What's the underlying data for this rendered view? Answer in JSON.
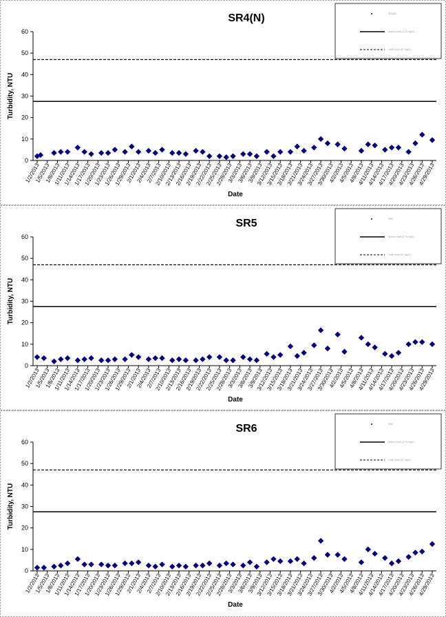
{
  "chart_data": [
    {
      "type": "scatter",
      "title": "SR4(N)",
      "xlabel": "Date",
      "ylabel": "Turbidity, NTU",
      "ylim": [
        0,
        60
      ],
      "yticks": [
        0,
        10,
        20,
        30,
        40,
        50,
        60
      ],
      "xticks": [
        "1/2/2013",
        "1/5/2013",
        "1/8/2013",
        "1/11/2013",
        "1/14/2013",
        "1/17/2013",
        "1/20/2013",
        "1/23/2013",
        "1/26/2013",
        "1/29/2013",
        "2/1/2013",
        "2/4/2013",
        "2/7/2013",
        "2/10/2013",
        "2/13/2013",
        "2/16/2013",
        "2/19/2013",
        "2/22/2013",
        "2/25/2013",
        "2/28/2013",
        "3/3/2013",
        "3/6/2013",
        "3/9/2013",
        "3/12/2013",
        "3/15/2013",
        "3/18/2013",
        "3/21/2013",
        "3/24/2013",
        "3/27/2013",
        "3/30/2013",
        "4/2/2013",
        "4/5/2013",
        "4/8/2013",
        "4/11/2013",
        "4/14/2013",
        "4/17/2013",
        "4/20/2013",
        "4/23/2013",
        "4/26/2013",
        "4/29/2013"
      ],
      "series": [
        {
          "name": "",
          "marker": "diamond",
          "color": "#000080",
          "x": [
            "1/2/2013",
            "1/3/2013",
            "1/7/2013",
            "1/9/2013",
            "1/11/2013",
            "1/14/2013",
            "1/16/2013",
            "1/18/2013",
            "1/21/2013",
            "1/23/2013",
            "1/25/2013",
            "1/28/2013",
            "1/30/2013",
            "2/1/2013",
            "2/4/2013",
            "2/6/2013",
            "2/8/2013",
            "2/11/2013",
            "2/13/2013",
            "2/15/2013",
            "2/18/2013",
            "2/20/2013",
            "2/22/2013",
            "2/25/2013",
            "2/27/2013",
            "3/1/2013",
            "3/4/2013",
            "3/6/2013",
            "3/8/2013",
            "3/11/2013",
            "3/13/2013",
            "3/15/2013",
            "3/18/2013",
            "3/20/2013",
            "3/22/2013",
            "3/25/2013",
            "3/27/2013",
            "3/29/2013",
            "4/1/2013",
            "4/3/2013",
            "4/8/2013",
            "4/10/2013",
            "4/12/2013",
            "4/15/2013",
            "4/17/2013",
            "4/19/2013",
            "4/22/2013",
            "4/24/2013",
            "4/26/2013",
            "4/29/2013"
          ],
          "values": [
            2,
            2.5,
            3.5,
            4,
            4,
            6,
            4,
            3,
            3.5,
            3.5,
            5,
            4,
            6.5,
            4,
            4.5,
            3.5,
            5,
            3.5,
            3.5,
            3,
            4.5,
            4,
            2,
            2,
            1.5,
            2,
            3,
            3,
            2,
            4,
            2,
            4,
            4,
            6.5,
            4.5,
            6,
            10,
            8,
            7.5,
            5.5,
            4.5,
            7.5,
            7,
            5,
            6,
            6,
            4,
            8,
            12,
            9.5
          ]
        }
      ],
      "reference_lines": [
        {
          "value": 27.5,
          "style": "solid"
        },
        {
          "value": 47,
          "style": "dashed"
        }
      ],
      "legend": [
        "SR4(N)",
        "Action Level (27.5 mg/L)",
        "Limit Level (47 mg/L)"
      ],
      "legend_placement": "top-right",
      "grid": false
    },
    {
      "type": "scatter",
      "title": "SR5",
      "xlabel": "Date",
      "ylabel": "Turbidity, NTU",
      "ylim": [
        0,
        60
      ],
      "yticks": [
        0,
        10,
        20,
        30,
        40,
        50,
        60
      ],
      "xticks": [
        "1/2/2013",
        "1/5/2013",
        "1/8/2013",
        "1/11/2013",
        "1/14/2013",
        "1/17/2013",
        "1/20/2013",
        "1/23/2013",
        "1/26/2013",
        "1/29/2013",
        "2/1/2013",
        "2/4/2013",
        "2/7/2013",
        "2/10/2013",
        "2/13/2013",
        "2/16/2013",
        "2/19/2013",
        "2/22/2013",
        "2/25/2013",
        "2/28/2013",
        "3/3/2013",
        "3/6/2013",
        "3/9/2013",
        "3/12/2013",
        "3/15/2013",
        "3/18/2013",
        "3/21/2013",
        "3/24/2013",
        "3/27/2013",
        "3/30/2013",
        "4/2/2013",
        "4/5/2013",
        "4/8/2013",
        "4/11/2013",
        "4/14/2013",
        "4/17/2013",
        "4/20/2013",
        "4/23/2013",
        "4/26/2013",
        "4/29/2013"
      ],
      "series": [
        {
          "name": "",
          "marker": "diamond",
          "color": "#000080",
          "x": [
            "1/2/2013",
            "1/4/2013",
            "1/7/2013",
            "1/9/2013",
            "1/11/2013",
            "1/14/2013",
            "1/16/2013",
            "1/18/2013",
            "1/21/2013",
            "1/23/2013",
            "1/25/2013",
            "1/28/2013",
            "1/30/2013",
            "2/1/2013",
            "2/4/2013",
            "2/6/2013",
            "2/8/2013",
            "2/11/2013",
            "2/13/2013",
            "2/15/2013",
            "2/18/2013",
            "2/20/2013",
            "2/22/2013",
            "2/25/2013",
            "2/27/2013",
            "3/1/2013",
            "3/4/2013",
            "3/6/2013",
            "3/8/2013",
            "3/11/2013",
            "3/13/2013",
            "3/15/2013",
            "3/18/2013",
            "3/20/2013",
            "3/22/2013",
            "3/25/2013",
            "3/27/2013",
            "3/29/2013",
            "4/1/2013",
            "4/3/2013",
            "4/8/2013",
            "4/10/2013",
            "4/12/2013",
            "4/15/2013",
            "4/17/2013",
            "4/19/2013",
            "4/22/2013",
            "4/24/2013",
            "4/26/2013",
            "4/29/2013"
          ],
          "values": [
            4,
            3.5,
            2,
            3,
            3.5,
            2.5,
            3,
            3.5,
            2.5,
            2.5,
            3,
            3,
            5,
            4,
            3,
            3.5,
            3.5,
            2.5,
            3,
            2.5,
            2.5,
            3,
            4,
            4,
            2.5,
            2.5,
            4,
            3,
            2.5,
            5.5,
            4,
            5,
            9,
            4.5,
            6,
            9.5,
            16.5,
            8,
            14.5,
            6.5,
            13,
            10,
            8.5,
            5.5,
            4.5,
            6,
            10,
            11,
            11,
            10
          ]
        }
      ],
      "reference_lines": [
        {
          "value": 27.5,
          "style": "solid"
        },
        {
          "value": 47,
          "style": "dashed"
        }
      ],
      "legend": [
        "SR5",
        "Action Level (27.5 mg/L)",
        "Limit Level (47 mg/L)"
      ],
      "legend_placement": "top-right",
      "grid": false
    },
    {
      "type": "scatter",
      "title": "SR6",
      "xlabel": "Date",
      "ylabel": "Turbidity, NTU",
      "ylim": [
        0,
        60
      ],
      "yticks": [
        0,
        10,
        20,
        30,
        40,
        50,
        60
      ],
      "xticks": [
        "1/2/2013",
        "1/5/2013",
        "1/8/2013",
        "1/11/2013",
        "1/14/2013",
        "1/17/2013",
        "1/20/2013",
        "1/23/2013",
        "1/26/2013",
        "1/29/2013",
        "2/1/2013",
        "2/4/2013",
        "2/7/2013",
        "2/10/2013",
        "2/13/2013",
        "2/16/2013",
        "2/19/2013",
        "2/22/2013",
        "2/25/2013",
        "2/28/2013",
        "3/3/2013",
        "3/6/2013",
        "3/9/2013",
        "3/12/2013",
        "3/15/2013",
        "3/18/2013",
        "3/21/2013",
        "3/24/2013",
        "3/27/2013",
        "3/30/2013",
        "4/2/2013",
        "4/5/2013",
        "4/8/2013",
        "4/11/2013",
        "4/14/2013",
        "4/17/2013",
        "4/20/2013",
        "4/23/2013",
        "4/26/2013",
        "4/29/2013"
      ],
      "series": [
        {
          "name": "",
          "marker": "diamond",
          "color": "#000080",
          "x": [
            "1/2/2013",
            "1/4/2013",
            "1/7/2013",
            "1/9/2013",
            "1/11/2013",
            "1/14/2013",
            "1/16/2013",
            "1/18/2013",
            "1/21/2013",
            "1/23/2013",
            "1/25/2013",
            "1/28/2013",
            "1/30/2013",
            "2/1/2013",
            "2/4/2013",
            "2/6/2013",
            "2/8/2013",
            "2/11/2013",
            "2/13/2013",
            "2/15/2013",
            "2/18/2013",
            "2/20/2013",
            "2/22/2013",
            "2/25/2013",
            "2/27/2013",
            "3/1/2013",
            "3/4/2013",
            "3/6/2013",
            "3/8/2013",
            "3/11/2013",
            "3/13/2013",
            "3/15/2013",
            "3/18/2013",
            "3/20/2013",
            "3/22/2013",
            "3/25/2013",
            "3/27/2013",
            "3/29/2013",
            "4/1/2013",
            "4/3/2013",
            "4/8/2013",
            "4/10/2013",
            "4/12/2013",
            "4/15/2013",
            "4/17/2013",
            "4/19/2013",
            "4/22/2013",
            "4/24/2013",
            "4/26/2013",
            "4/29/2013"
          ],
          "values": [
            1.5,
            1.5,
            2,
            2.5,
            3.5,
            5.5,
            3,
            3,
            3,
            2.5,
            2.5,
            3.5,
            3.5,
            4,
            2.5,
            2,
            3,
            2,
            2.5,
            2,
            2.5,
            2.5,
            3.5,
            2.5,
            3.5,
            3,
            2.5,
            4,
            2,
            4,
            5.5,
            4.5,
            4.5,
            5.5,
            3.5,
            6,
            14,
            7.5,
            7.5,
            5.5,
            4,
            10,
            8,
            6,
            3.5,
            4.5,
            6.5,
            8.5,
            9,
            12.5
          ]
        }
      ],
      "reference_lines": [
        {
          "value": 27.5,
          "style": "solid"
        },
        {
          "value": 47,
          "style": "dashed"
        }
      ],
      "legend": [
        "SR6",
        "Action Level (27.5 mg/L)",
        "Limit Level (47 mg/L)"
      ],
      "legend_placement": "top-right",
      "grid": false
    }
  ]
}
